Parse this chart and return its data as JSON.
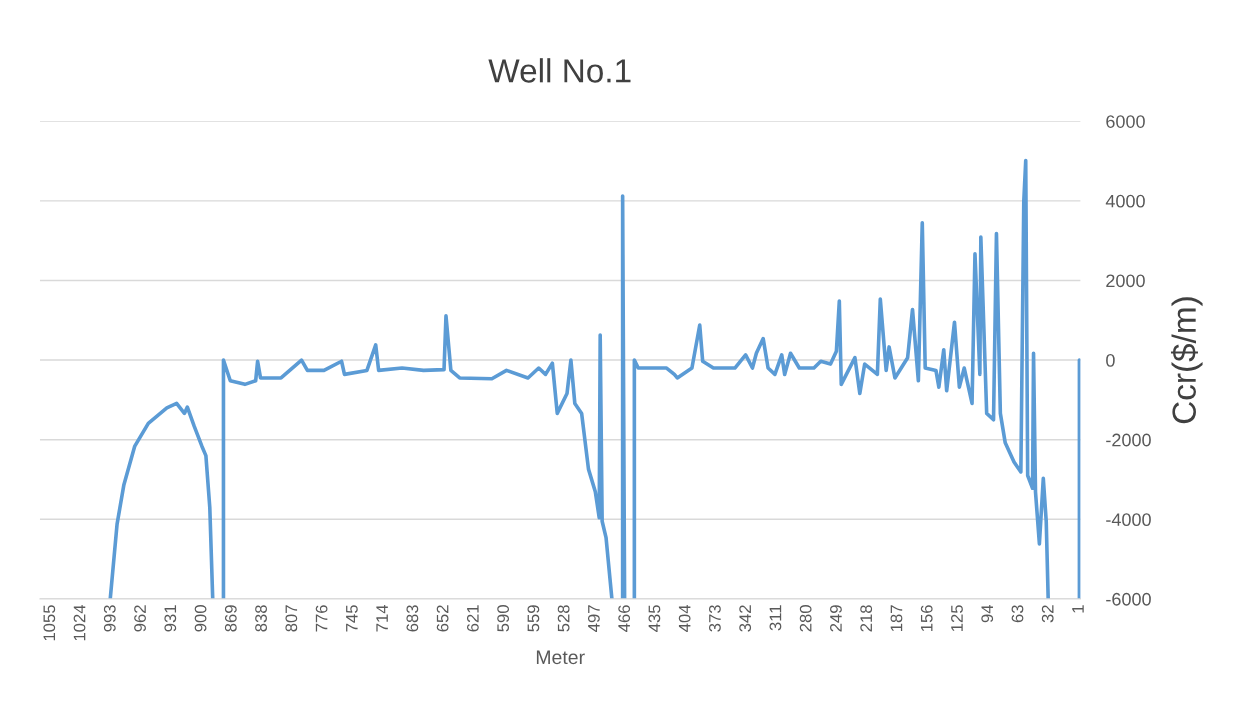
{
  "chart_data": {
    "type": "line",
    "title": "Well No.1",
    "xlabel": "Meter",
    "ylabel": "Ccr($/m)",
    "x": [
      994,
      987,
      980,
      969,
      955,
      936,
      926,
      918,
      915,
      908,
      900,
      896,
      892,
      889,
      885,
      878,
      878,
      871,
      856,
      845,
      843,
      840,
      819,
      798,
      792,
      775,
      757,
      754,
      731,
      722,
      719,
      695,
      673,
      652,
      650,
      645,
      636,
      603,
      588,
      566,
      555,
      548,
      541,
      536,
      526,
      522,
      518,
      511,
      504,
      497,
      493,
      492,
      490,
      486,
      480,
      476,
      469,
      469,
      467,
      464,
      457,
      457,
      453,
      424,
      416,
      413,
      398,
      390,
      387,
      376,
      354,
      343,
      336,
      332,
      325,
      320,
      313,
      306,
      303,
      297,
      288,
      273,
      266,
      256,
      250,
      247,
      245,
      231,
      226,
      221,
      208,
      205,
      199,
      196,
      190,
      177,
      172,
      166,
      162,
      159,
      148,
      145,
      140,
      137,
      129,
      124,
      119,
      111,
      108,
      103,
      102,
      96,
      89,
      86,
      82,
      77,
      68,
      61,
      58,
      56,
      54,
      49,
      48,
      46,
      42,
      38,
      35,
      33,
      20,
      1,
      1
    ],
    "series": [
      {
        "color": "#5b9bd5",
        "values": [
          -6000,
          -4120,
          -3130,
          -2170,
          -1590,
          -1200,
          -1090,
          -1340,
          -1180,
          -1660,
          -2170,
          -2400,
          -3700,
          -6000,
          null,
          -6000,
          0,
          -520,
          -610,
          -520,
          -30,
          -450,
          -450,
          0,
          -260,
          -260,
          -30,
          -360,
          -260,
          380,
          -260,
          -200,
          -260,
          -240,
          1110,
          -260,
          -450,
          -470,
          -260,
          -450,
          -200,
          -360,
          -80,
          -1340,
          -840,
          0,
          -1090,
          -1340,
          -2740,
          -3310,
          -3960,
          630,
          -4050,
          -4460,
          -6000,
          null,
          -6000,
          4120,
          -6000,
          null,
          -6000,
          0,
          -200,
          -200,
          -360,
          -450,
          -200,
          880,
          -30,
          -200,
          -200,
          130,
          -200,
          170,
          540,
          -200,
          -360,
          130,
          -360,
          170,
          -200,
          -200,
          -30,
          -100,
          220,
          1480,
          -610,
          60,
          -840,
          -100,
          -360,
          1530,
          -260,
          330,
          -450,
          60,
          1270,
          -520,
          3450,
          -200,
          -260,
          -680,
          260,
          -770,
          950,
          -680,
          -200,
          -1090,
          2670,
          -360,
          3090,
          -1340,
          -1500,
          3180,
          -1340,
          -2080,
          -2560,
          -2810,
          3980,
          5010,
          -2900,
          -3220,
          170,
          -3310,
          -4620,
          -2970,
          -4050,
          -6000,
          null,
          -6000,
          0
        ]
      }
    ],
    "xlim": [
      1066,
      0
    ],
    "xticks": [
      1055,
      1024,
      993,
      962,
      931,
      900,
      869,
      838,
      807,
      776,
      745,
      714,
      683,
      652,
      621,
      590,
      559,
      528,
      497,
      466,
      435,
      404,
      373,
      342,
      311,
      280,
      249,
      218,
      187,
      156,
      125,
      94,
      63,
      32,
      1
    ],
    "ylim": [
      -6000,
      6000
    ],
    "yticks": [
      -6000,
      -4000,
      -2000,
      0,
      2000,
      4000,
      6000
    ],
    "grid": "y",
    "line_style": "solid"
  }
}
